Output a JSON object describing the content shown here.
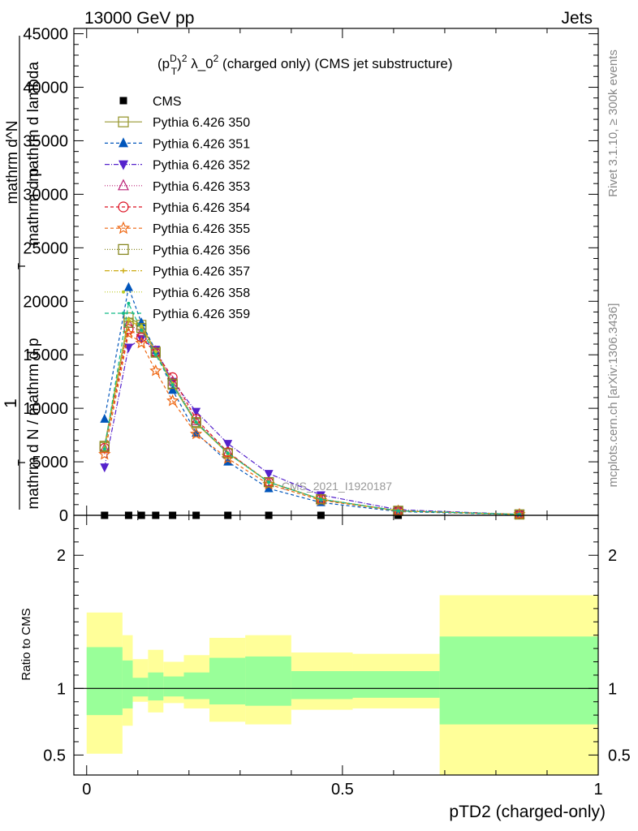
{
  "header": {
    "left": "13000 GeV pp",
    "right": "Jets",
    "rivet": "Rivet 3.1.10, ≥ 300k events",
    "mcplots": "mcplots.cern.ch [arXiv:1306.3436]",
    "watermark": "CMS_2021_I1920187"
  },
  "colors": {
    "band_outer": "#ffff99",
    "band_inner": "#99ff99"
  },
  "chart_data": [
    {
      "type": "line",
      "title_parts": {
        "p": "(p",
        "sup_d": "D",
        "sub_t": "T",
        "close": ")",
        "sup_2": "2",
        "lam": " λ_0",
        "sup_22": "2",
        "rest": " (charged only) (CMS jet substructure)"
      },
      "ylabel": "1 / mathrm d N / mathrm d p_T mathrm d^N / mathrm d p_T mathrm d lambda",
      "ylabel_lines": [
        "1",
        "mathrm d N / mathrm d p",
        "T",
        "mathrm d^N",
        "mathrm d p",
        "T",
        "mathrm d lambda"
      ],
      "xlim": [
        -0.025,
        1.0
      ],
      "ylim": [
        0,
        45500
      ],
      "yticks": [
        0,
        5000,
        10000,
        15000,
        20000,
        25000,
        30000,
        35000,
        40000,
        45000
      ],
      "ytick_labels": [
        "0",
        "5000",
        "10000",
        "15000",
        "20000",
        "25000",
        "30000",
        "35000",
        "40000",
        "45000"
      ],
      "x": [
        0.035,
        0.082,
        0.107,
        0.135,
        0.168,
        0.214,
        0.276,
        0.356,
        0.458,
        0.609,
        0.846
      ],
      "series": [
        {
          "name": "CMS",
          "color": "#000000",
          "marker": "square-filled",
          "dash": "none",
          "values": [
            0,
            0,
            0,
            0,
            0,
            0,
            0,
            0,
            0,
            0,
            0
          ]
        },
        {
          "name": "Pythia 6.426 350",
          "color": "#999933",
          "marker": "square-open",
          "dash": "solid",
          "values": [
            6500,
            18500,
            17800,
            15300,
            12200,
            8600,
            5800,
            3100,
            1500,
            420,
            80
          ]
        },
        {
          "name": "Pythia 6.426 351",
          "color": "#0055bb",
          "marker": "triangle-up-filled",
          "dash": "4,3",
          "values": [
            9000,
            21300,
            18000,
            15400,
            11700,
            7700,
            5000,
            2500,
            1200,
            350,
            70
          ]
        },
        {
          "name": "Pythia 6.426 352",
          "color": "#5522cc",
          "marker": "triangle-down-filled",
          "dash": "6,2,1,2",
          "values": [
            4500,
            15700,
            16500,
            15500,
            12500,
            9700,
            6700,
            3900,
            1900,
            520,
            90
          ]
        },
        {
          "name": "Pythia 6.426 353",
          "color": "#bb2277",
          "marker": "triangle-up-open",
          "dash": "1,2",
          "values": [
            6200,
            17900,
            17100,
            15300,
            12500,
            8800,
            5900,
            3100,
            1500,
            420,
            80
          ]
        },
        {
          "name": "Pythia 6.426 354",
          "color": "#dd1122",
          "marker": "circle-open",
          "dash": "4,3",
          "values": [
            6300,
            17400,
            16600,
            15200,
            12900,
            9000,
            5900,
            3100,
            1500,
            420,
            80
          ]
        },
        {
          "name": "Pythia 6.426 355",
          "color": "#ee6611",
          "marker": "star-open",
          "dash": "4,3",
          "values": [
            5700,
            17000,
            16100,
            13500,
            10700,
            7600,
            5300,
            2900,
            1400,
            400,
            80
          ]
        },
        {
          "name": "Pythia 6.426 356",
          "color": "#888822",
          "marker": "square-open",
          "dash": "1,2",
          "values": [
            6400,
            18000,
            17500,
            15200,
            12300,
            8700,
            5800,
            3100,
            1500,
            420,
            80
          ]
        },
        {
          "name": "Pythia 6.426 357",
          "color": "#ccaa11",
          "marker": "small-cross",
          "dash": "6,2,1,2",
          "values": [
            6300,
            18200,
            17600,
            15300,
            12300,
            8700,
            5800,
            3100,
            1500,
            420,
            80
          ]
        },
        {
          "name": "Pythia 6.426 358",
          "color": "#bbcc22",
          "marker": "small-dot",
          "dash": "1,2",
          "values": [
            6300,
            18300,
            17700,
            15300,
            12300,
            8700,
            5800,
            3100,
            1500,
            420,
            80
          ]
        },
        {
          "name": "Pythia 6.426 359",
          "color": "#11bb88",
          "marker": "small-dot",
          "dash": "5,3",
          "values": [
            6200,
            19800,
            17300,
            15000,
            12200,
            8700,
            5800,
            3100,
            1500,
            420,
            80
          ]
        }
      ]
    },
    {
      "type": "area",
      "ylabel": "Ratio to CMS",
      "xlabel": "pTD2 (charged-only)",
      "xlim": [
        -0.025,
        1.0
      ],
      "ylim": [
        0.35,
        2.3
      ],
      "xticks": [
        0,
        0.5,
        1
      ],
      "xtick_labels": [
        "0",
        "0.5",
        "1"
      ],
      "yticks": [
        0.5,
        1,
        2
      ],
      "ytick_labels": [
        "0.5",
        "1",
        "2"
      ],
      "bins": [
        {
          "lo": 0.0,
          "hi": 0.07,
          "outer": [
            0.51,
            1.57
          ],
          "inner": [
            0.8,
            1.31
          ]
        },
        {
          "lo": 0.07,
          "hi": 0.09,
          "outer": [
            0.72,
            1.4
          ],
          "inner": [
            0.85,
            1.21
          ]
        },
        {
          "lo": 0.09,
          "hi": 0.12,
          "outer": [
            0.9,
            1.22
          ],
          "inner": [
            0.94,
            1.08
          ]
        },
        {
          "lo": 0.12,
          "hi": 0.15,
          "outer": [
            0.82,
            1.29
          ],
          "inner": [
            0.91,
            1.12
          ]
        },
        {
          "lo": 0.15,
          "hi": 0.19,
          "outer": [
            0.89,
            1.2
          ],
          "inner": [
            0.94,
            1.09
          ]
        },
        {
          "lo": 0.19,
          "hi": 0.24,
          "outer": [
            0.85,
            1.25
          ],
          "inner": [
            0.92,
            1.12
          ]
        },
        {
          "lo": 0.24,
          "hi": 0.31,
          "outer": [
            0.75,
            1.38
          ],
          "inner": [
            0.88,
            1.23
          ]
        },
        {
          "lo": 0.31,
          "hi": 0.4,
          "outer": [
            0.73,
            1.4
          ],
          "inner": [
            0.87,
            1.24
          ]
        },
        {
          "lo": 0.4,
          "hi": 0.52,
          "outer": [
            0.84,
            1.27
          ],
          "inner": [
            0.92,
            1.13
          ]
        },
        {
          "lo": 0.52,
          "hi": 0.69,
          "outer": [
            0.85,
            1.26
          ],
          "inner": [
            0.93,
            1.13
          ]
        },
        {
          "lo": 0.69,
          "hi": 1.0,
          "outer": [
            0.32,
            1.7
          ],
          "inner": [
            0.73,
            1.39
          ]
        }
      ]
    }
  ]
}
